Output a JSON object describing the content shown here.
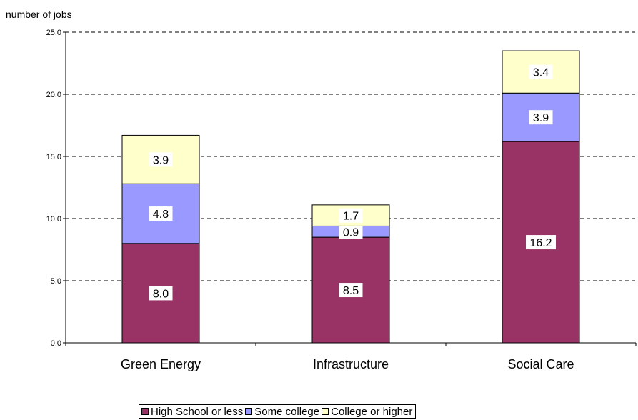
{
  "chart_data": {
    "type": "bar",
    "stacked": true,
    "ylabel": "number of jobs",
    "ylim": [
      0,
      25
    ],
    "yticks": [
      "0.0",
      "5.0",
      "10.0",
      "15.0",
      "20.0",
      "25.0"
    ],
    "grid": "dashed horizontal",
    "categories": [
      "Green Energy",
      "Infrastructure",
      "Social Care"
    ],
    "series": [
      {
        "name": "High School or less",
        "color": "#993366",
        "values": [
          8.0,
          8.5,
          16.2
        ],
        "labels": [
          "8.0",
          "8.5",
          "16.2"
        ]
      },
      {
        "name": "Some college",
        "color": "#9999ff",
        "values": [
          4.8,
          0.9,
          3.9
        ],
        "labels": [
          "4.8",
          "0.9",
          "3.9"
        ]
      },
      {
        "name": "College or higher",
        "color": "#ffffcc",
        "values": [
          3.9,
          1.7,
          3.4
        ],
        "labels": [
          "3.9",
          "1.7",
          "3.4"
        ]
      }
    ],
    "legend_position": "bottom"
  }
}
